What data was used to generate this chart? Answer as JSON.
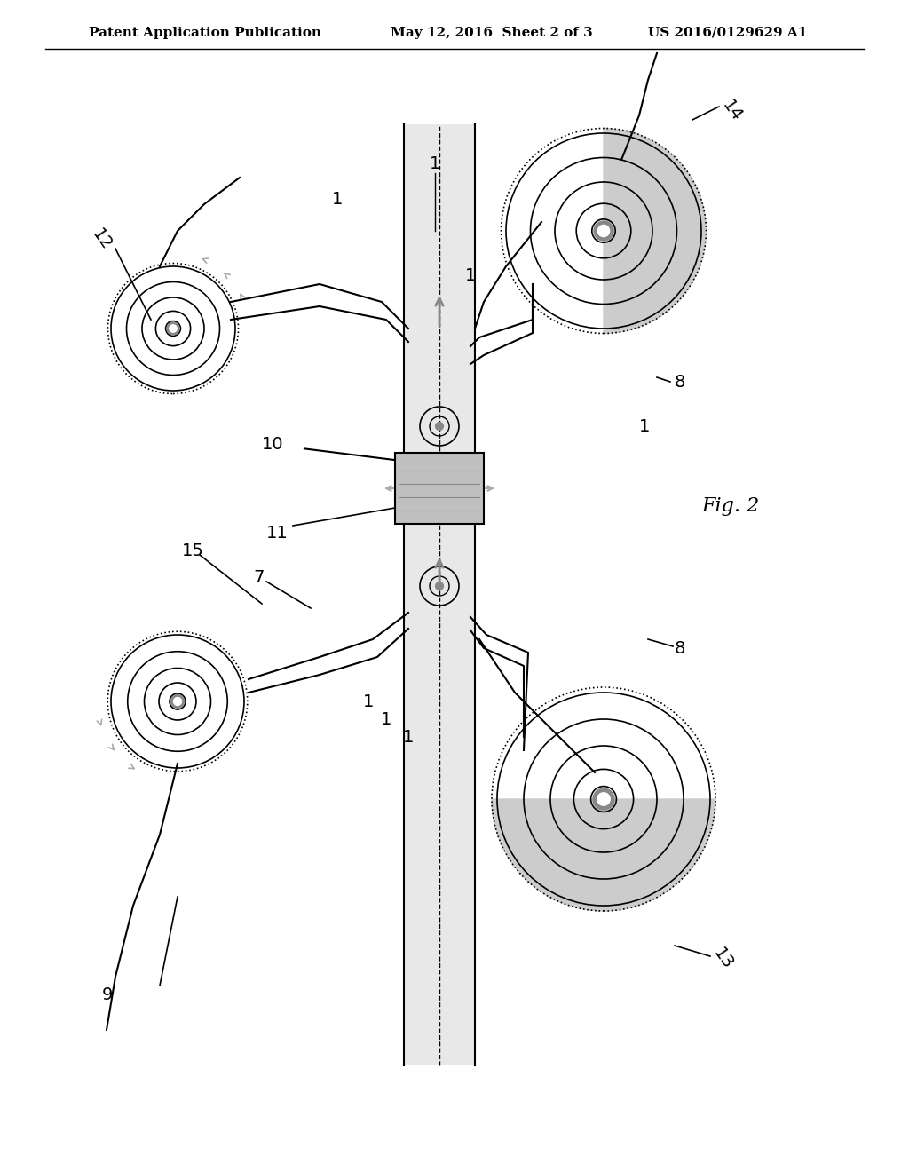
{
  "title_left": "Patent Application Publication",
  "title_mid": "May 12, 2016  Sheet 2 of 3",
  "title_right": "US 2016/0129629 A1",
  "fig_label": "Fig. 2",
  "bg_color": "#ffffff",
  "line_color": "#000000",
  "gray_light": "#cccccc",
  "gray_mid": "#999999",
  "gray_dark": "#666666",
  "tape_color": "#c8c8c8",
  "belt_color": "#d0d0d0"
}
